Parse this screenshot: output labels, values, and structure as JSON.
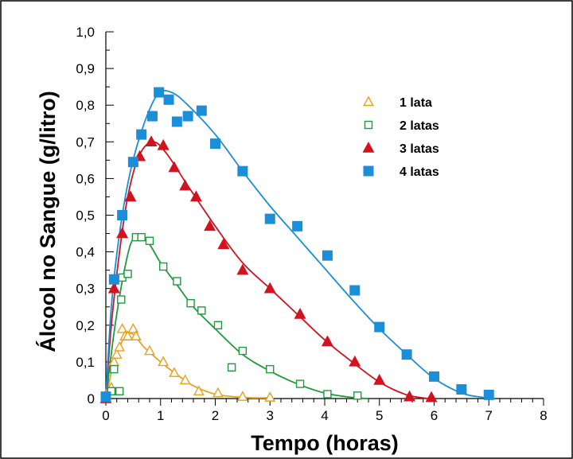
{
  "chart_data": {
    "type": "scatter",
    "xlabel": "Tempo (horas)",
    "ylabel": "Álcool no Sangue (g/litro)",
    "xlim": [
      0,
      8
    ],
    "ylim": [
      0,
      1.0
    ],
    "x_ticks": [
      "0",
      "1",
      "2",
      "3",
      "4",
      "5",
      "6",
      "7",
      "8"
    ],
    "y_ticks": [
      "0",
      "0,1",
      "0,2",
      "0,3",
      "0,4",
      "0,5",
      "0,6",
      "0,7",
      "0,8",
      "0,9",
      "1,0"
    ],
    "grid": false,
    "legend_position": "top-right",
    "series": [
      {
        "name": "1 lata",
        "marker": "triangle-open",
        "color": "#E8A020",
        "points": [
          [
            0,
            0.01
          ],
          [
            0.1,
            0.03
          ],
          [
            0.15,
            0.1
          ],
          [
            0.2,
            0.12
          ],
          [
            0.25,
            0.14
          ],
          [
            0.3,
            0.19
          ],
          [
            0.35,
            0.17
          ],
          [
            0.4,
            0.17
          ],
          [
            0.5,
            0.19
          ],
          [
            0.55,
            0.17
          ],
          [
            0.8,
            0.13
          ],
          [
            1.05,
            0.1
          ],
          [
            1.25,
            0.07
          ],
          [
            1.45,
            0.05
          ],
          [
            1.7,
            0.02
          ],
          [
            2.05,
            0.015
          ],
          [
            2.5,
            0.005
          ],
          [
            3.0,
            0.003
          ]
        ],
        "curve": [
          [
            0,
            0
          ],
          [
            0.15,
            0.1
          ],
          [
            0.35,
            0.17
          ],
          [
            0.5,
            0.175
          ],
          [
            0.7,
            0.14
          ],
          [
            1.0,
            0.1
          ],
          [
            1.3,
            0.065
          ],
          [
            1.6,
            0.035
          ],
          [
            2.0,
            0.012
          ],
          [
            2.5,
            0.003
          ],
          [
            3.0,
            0.002
          ]
        ]
      },
      {
        "name": "2 latas",
        "marker": "square-open",
        "color": "#1E9B3C",
        "points": [
          [
            0,
            0.0
          ],
          [
            0.1,
            0.02
          ],
          [
            0.15,
            0.08
          ],
          [
            0.25,
            0.02
          ],
          [
            0.28,
            0.27
          ],
          [
            0.3,
            0.33
          ],
          [
            0.4,
            0.34
          ],
          [
            0.55,
            0.44
          ],
          [
            0.65,
            0.44
          ],
          [
            0.8,
            0.43
          ],
          [
            1.05,
            0.36
          ],
          [
            1.3,
            0.32
          ],
          [
            1.55,
            0.26
          ],
          [
            1.75,
            0.24
          ],
          [
            2.05,
            0.2
          ],
          [
            2.3,
            0.085
          ],
          [
            2.5,
            0.13
          ],
          [
            3.0,
            0.08
          ],
          [
            3.55,
            0.04
          ],
          [
            4.05,
            0.012
          ],
          [
            4.6,
            0.008
          ]
        ],
        "curve": [
          [
            0,
            0
          ],
          [
            0.15,
            0.18
          ],
          [
            0.3,
            0.32
          ],
          [
            0.45,
            0.42
          ],
          [
            0.6,
            0.445
          ],
          [
            0.8,
            0.42
          ],
          [
            1.0,
            0.37
          ],
          [
            1.3,
            0.31
          ],
          [
            1.6,
            0.25
          ],
          [
            2.0,
            0.19
          ],
          [
            2.5,
            0.12
          ],
          [
            3.0,
            0.075
          ],
          [
            3.5,
            0.04
          ],
          [
            4.0,
            0.015
          ],
          [
            4.5,
            0.003
          ],
          [
            4.8,
            0.0
          ]
        ]
      },
      {
        "name": "3 latas",
        "marker": "triangle-filled",
        "color": "#D2121E",
        "points": [
          [
            0,
            0.0
          ],
          [
            0.15,
            0.3
          ],
          [
            0.3,
            0.45
          ],
          [
            0.45,
            0.55
          ],
          [
            0.62,
            0.66
          ],
          [
            0.83,
            0.7
          ],
          [
            1.05,
            0.69
          ],
          [
            1.25,
            0.63
          ],
          [
            1.45,
            0.58
          ],
          [
            1.65,
            0.55
          ],
          [
            1.9,
            0.47
          ],
          [
            2.15,
            0.42
          ],
          [
            2.5,
            0.35
          ],
          [
            3.0,
            0.3
          ],
          [
            3.55,
            0.23
          ],
          [
            4.05,
            0.155
          ],
          [
            4.55,
            0.1
          ],
          [
            5.0,
            0.05
          ],
          [
            5.55,
            0.005
          ],
          [
            5.95,
            0.003
          ]
        ],
        "curve": [
          [
            0,
            0
          ],
          [
            0.1,
            0.2
          ],
          [
            0.25,
            0.4
          ],
          [
            0.4,
            0.55
          ],
          [
            0.6,
            0.66
          ],
          [
            0.85,
            0.7
          ],
          [
            1.1,
            0.67
          ],
          [
            1.5,
            0.58
          ],
          [
            2.0,
            0.47
          ],
          [
            2.5,
            0.37
          ],
          [
            3.0,
            0.3
          ],
          [
            3.5,
            0.23
          ],
          [
            4.0,
            0.16
          ],
          [
            4.5,
            0.1
          ],
          [
            5.0,
            0.045
          ],
          [
            5.5,
            0.01
          ],
          [
            5.9,
            0.0
          ]
        ]
      },
      {
        "name": "4 latas",
        "marker": "square-filled",
        "color": "#1A8ED8",
        "points": [
          [
            0,
            0.005
          ],
          [
            0.15,
            0.325
          ],
          [
            0.3,
            0.5
          ],
          [
            0.5,
            0.645
          ],
          [
            0.65,
            0.72
          ],
          [
            0.85,
            0.77
          ],
          [
            0.97,
            0.835
          ],
          [
            1.15,
            0.815
          ],
          [
            1.3,
            0.755
          ],
          [
            1.5,
            0.77
          ],
          [
            1.75,
            0.785
          ],
          [
            2.0,
            0.695
          ],
          [
            2.5,
            0.62
          ],
          [
            3.0,
            0.49
          ],
          [
            3.5,
            0.47
          ],
          [
            4.05,
            0.39
          ],
          [
            4.55,
            0.295
          ],
          [
            5.0,
            0.195
          ],
          [
            5.5,
            0.12
          ],
          [
            6.0,
            0.06
          ],
          [
            6.5,
            0.025
          ],
          [
            7.0,
            0.01
          ]
        ],
        "curve": [
          [
            0,
            0
          ],
          [
            0.1,
            0.25
          ],
          [
            0.25,
            0.45
          ],
          [
            0.45,
            0.62
          ],
          [
            0.7,
            0.75
          ],
          [
            0.95,
            0.83
          ],
          [
            1.2,
            0.835
          ],
          [
            1.5,
            0.8
          ],
          [
            2.0,
            0.72
          ],
          [
            2.5,
            0.62
          ],
          [
            3.0,
            0.525
          ],
          [
            3.5,
            0.44
          ],
          [
            4.0,
            0.355
          ],
          [
            4.5,
            0.27
          ],
          [
            5.0,
            0.19
          ],
          [
            5.5,
            0.12
          ],
          [
            6.0,
            0.055
          ],
          [
            6.5,
            0.015
          ],
          [
            6.9,
            0.003
          ],
          [
            7.1,
            0.0
          ]
        ]
      }
    ]
  }
}
